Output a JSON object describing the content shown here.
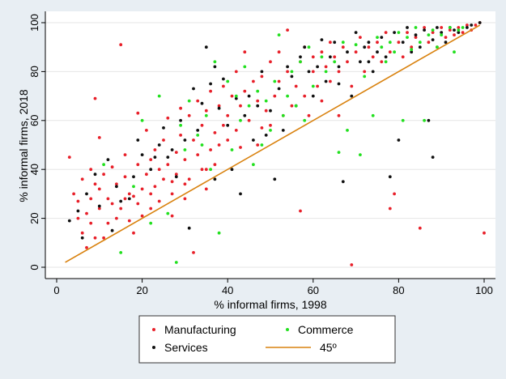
{
  "chart_data": {
    "type": "scatter",
    "xlabel": "% informal firms, 1998",
    "ylabel": "% informal firms, 2018",
    "xlim": [
      0,
      100
    ],
    "ylim": [
      0,
      100
    ],
    "xticks": [
      0,
      20,
      40,
      60,
      80,
      100
    ],
    "yticks": [
      0,
      20,
      40,
      60,
      80,
      100
    ],
    "grid": "horizontal",
    "legend_position": "bottom",
    "colors": {
      "manufacturing": "#e8202a",
      "services": "#111111",
      "commerce": "#22e01f",
      "line45": "#d9820f",
      "plot_background": "#ffffff",
      "page_background": "#e8eef3"
    },
    "series": [
      {
        "name": "Manufacturing",
        "legend_label": "Manufacturing",
        "marker": "dot",
        "points": [
          [
            3,
            45
          ],
          [
            4,
            30
          ],
          [
            5,
            20
          ],
          [
            5,
            27
          ],
          [
            6,
            36
          ],
          [
            6,
            14
          ],
          [
            7,
            22
          ],
          [
            7,
            8
          ],
          [
            8,
            40
          ],
          [
            8,
            28
          ],
          [
            8,
            18
          ],
          [
            9,
            34
          ],
          [
            9,
            69
          ],
          [
            9,
            12
          ],
          [
            10,
            32
          ],
          [
            10,
            53
          ],
          [
            10,
            24
          ],
          [
            11,
            38
          ],
          [
            11,
            12
          ],
          [
            12,
            28
          ],
          [
            12,
            18
          ],
          [
            13,
            26
          ],
          [
            13,
            41
          ],
          [
            14,
            20
          ],
          [
            14,
            34
          ],
          [
            15,
            91
          ],
          [
            15,
            24
          ],
          [
            16,
            37
          ],
          [
            16,
            46
          ],
          [
            17,
            19
          ],
          [
            17,
            30
          ],
          [
            18,
            29
          ],
          [
            18,
            14
          ],
          [
            19,
            63
          ],
          [
            19,
            42
          ],
          [
            20,
            32
          ],
          [
            20,
            21
          ],
          [
            21,
            56
          ],
          [
            21,
            38
          ],
          [
            22,
            24
          ],
          [
            22,
            44
          ],
          [
            23,
            33
          ],
          [
            23,
            48
          ],
          [
            24,
            27
          ],
          [
            25,
            52
          ],
          [
            25,
            36
          ],
          [
            26,
            61
          ],
          [
            26,
            42
          ],
          [
            27,
            21
          ],
          [
            27,
            30
          ],
          [
            28,
            38
          ],
          [
            28,
            47
          ],
          [
            29,
            65
          ],
          [
            29,
            54
          ],
          [
            30,
            44
          ],
          [
            30,
            28
          ],
          [
            31,
            62
          ],
          [
            31,
            36
          ],
          [
            32,
            6
          ],
          [
            32,
            52
          ],
          [
            33,
            68
          ],
          [
            33,
            46
          ],
          [
            34,
            58
          ],
          [
            34,
            40
          ],
          [
            35,
            64
          ],
          [
            35,
            32
          ],
          [
            36,
            72
          ],
          [
            36,
            48
          ],
          [
            37,
            55
          ],
          [
            37,
            42
          ],
          [
            38,
            66
          ],
          [
            38,
            50
          ],
          [
            39,
            74
          ],
          [
            39,
            58
          ],
          [
            40,
            62
          ],
          [
            41,
            70
          ],
          [
            42,
            80
          ],
          [
            42,
            56
          ],
          [
            43,
            66
          ],
          [
            44,
            72
          ],
          [
            44,
            88
          ],
          [
            45,
            60
          ],
          [
            46,
            76
          ],
          [
            47,
            50
          ],
          [
            47,
            68
          ],
          [
            48,
            78
          ],
          [
            49,
            64
          ],
          [
            50,
            58
          ],
          [
            50,
            84
          ],
          [
            51,
            70
          ],
          [
            52,
            76
          ],
          [
            52,
            88
          ],
          [
            53,
            62
          ],
          [
            54,
            97
          ],
          [
            54,
            80
          ],
          [
            55,
            66
          ],
          [
            56,
            74
          ],
          [
            57,
            84
          ],
          [
            57,
            23
          ],
          [
            58,
            90
          ],
          [
            58,
            70
          ],
          [
            59,
            62
          ],
          [
            60,
            80
          ],
          [
            60,
            86
          ],
          [
            61,
            74
          ],
          [
            62,
            88
          ],
          [
            62,
            68
          ],
          [
            63,
            82
          ],
          [
            64,
            76
          ],
          [
            64,
            92
          ],
          [
            65,
            86
          ],
          [
            66,
            80
          ],
          [
            66,
            62
          ],
          [
            67,
            90
          ],
          [
            68,
            84
          ],
          [
            69,
            74
          ],
          [
            69,
            1
          ],
          [
            70,
            88
          ],
          [
            71,
            94
          ],
          [
            72,
            80
          ],
          [
            73,
            90
          ],
          [
            74,
            86
          ],
          [
            75,
            92
          ],
          [
            76,
            84
          ],
          [
            77,
            96
          ],
          [
            78,
            88
          ],
          [
            78,
            24
          ],
          [
            79,
            30
          ],
          [
            80,
            92
          ],
          [
            81,
            86
          ],
          [
            82,
            96
          ],
          [
            83,
            90
          ],
          [
            84,
            94
          ],
          [
            85,
            16
          ],
          [
            86,
            98
          ],
          [
            87,
            92
          ],
          [
            88,
            96
          ],
          [
            89,
            90
          ],
          [
            90,
            98
          ],
          [
            91,
            94
          ],
          [
            92,
            97
          ],
          [
            93,
            95
          ],
          [
            94,
            98
          ],
          [
            95,
            96
          ],
          [
            96,
            99
          ],
          [
            97,
            97
          ],
          [
            98,
            99
          ],
          [
            99,
            100
          ],
          [
            100,
            14
          ],
          [
            48,
            57
          ],
          [
            43,
            49
          ],
          [
            40,
            52
          ],
          [
            35,
            40
          ],
          [
            30,
            34
          ],
          [
            27,
            35
          ],
          [
            24,
            40
          ],
          [
            22,
            30
          ],
          [
            19,
            26
          ],
          [
            16,
            28
          ]
        ]
      },
      {
        "name": "Services",
        "legend_label": "Services",
        "marker": "dot",
        "points": [
          [
            3,
            19
          ],
          [
            5,
            23
          ],
          [
            6,
            12
          ],
          [
            7,
            30
          ],
          [
            9,
            38
          ],
          [
            10,
            25
          ],
          [
            12,
            44
          ],
          [
            13,
            15
          ],
          [
            14,
            33
          ],
          [
            15,
            27
          ],
          [
            17,
            28
          ],
          [
            18,
            37
          ],
          [
            19,
            52
          ],
          [
            20,
            46
          ],
          [
            22,
            40
          ],
          [
            23,
            45
          ],
          [
            24,
            50
          ],
          [
            25,
            57
          ],
          [
            26,
            45
          ],
          [
            27,
            48
          ],
          [
            28,
            37
          ],
          [
            29,
            60
          ],
          [
            30,
            52
          ],
          [
            31,
            16
          ],
          [
            32,
            73
          ],
          [
            33,
            56
          ],
          [
            34,
            67
          ],
          [
            35,
            90
          ],
          [
            36,
            75
          ],
          [
            37,
            82
          ],
          [
            37,
            36
          ],
          [
            38,
            65
          ],
          [
            39,
            77
          ],
          [
            40,
            58
          ],
          [
            41,
            40
          ],
          [
            42,
            69
          ],
          [
            43,
            30
          ],
          [
            44,
            62
          ],
          [
            45,
            70
          ],
          [
            46,
            52
          ],
          [
            47,
            66
          ],
          [
            48,
            80
          ],
          [
            49,
            54
          ],
          [
            50,
            64
          ],
          [
            51,
            36
          ],
          [
            52,
            73
          ],
          [
            53,
            56
          ],
          [
            54,
            82
          ],
          [
            55,
            78
          ],
          [
            56,
            66
          ],
          [
            57,
            86
          ],
          [
            58,
            90
          ],
          [
            59,
            80
          ],
          [
            60,
            70
          ],
          [
            61,
            82
          ],
          [
            62,
            93
          ],
          [
            63,
            76
          ],
          [
            64,
            86
          ],
          [
            65,
            92
          ],
          [
            66,
            82
          ],
          [
            67,
            35
          ],
          [
            68,
            88
          ],
          [
            69,
            70
          ],
          [
            70,
            96
          ],
          [
            71,
            84
          ],
          [
            72,
            90
          ],
          [
            73,
            92
          ],
          [
            74,
            80
          ],
          [
            75,
            88
          ],
          [
            76,
            94
          ],
          [
            77,
            86
          ],
          [
            78,
            37
          ],
          [
            79,
            96
          ],
          [
            80,
            52
          ],
          [
            81,
            92
          ],
          [
            82,
            98
          ],
          [
            83,
            88
          ],
          [
            84,
            95
          ],
          [
            85,
            90
          ],
          [
            86,
            97
          ],
          [
            87,
            60
          ],
          [
            88,
            45
          ],
          [
            88,
            93
          ],
          [
            89,
            98
          ],
          [
            90,
            96
          ],
          [
            91,
            92
          ],
          [
            92,
            98
          ],
          [
            93,
            97
          ],
          [
            94,
            96
          ],
          [
            96,
            98
          ],
          [
            97,
            99
          ],
          [
            99,
            100
          ],
          [
            73,
            84
          ],
          [
            66,
            75
          ]
        ]
      },
      {
        "name": "Commerce",
        "legend_label": "Commerce",
        "marker": "dot",
        "points": [
          [
            11,
            42
          ],
          [
            15,
            6
          ],
          [
            18,
            33
          ],
          [
            20,
            60
          ],
          [
            22,
            18
          ],
          [
            24,
            70
          ],
          [
            26,
            22
          ],
          [
            28,
            2
          ],
          [
            29,
            58
          ],
          [
            30,
            48
          ],
          [
            31,
            68
          ],
          [
            33,
            54
          ],
          [
            34,
            50
          ],
          [
            35,
            62
          ],
          [
            36,
            40
          ],
          [
            37,
            84
          ],
          [
            38,
            14
          ],
          [
            40,
            76
          ],
          [
            41,
            48
          ],
          [
            42,
            70
          ],
          [
            43,
            60
          ],
          [
            44,
            82
          ],
          [
            45,
            66
          ],
          [
            46,
            42
          ],
          [
            47,
            72
          ],
          [
            48,
            50
          ],
          [
            49,
            68
          ],
          [
            50,
            56
          ],
          [
            51,
            76
          ],
          [
            52,
            95
          ],
          [
            53,
            62
          ],
          [
            54,
            70
          ],
          [
            55,
            80
          ],
          [
            56,
            66
          ],
          [
            57,
            84
          ],
          [
            58,
            60
          ],
          [
            59,
            90
          ],
          [
            60,
            74
          ],
          [
            62,
            86
          ],
          [
            63,
            80
          ],
          [
            65,
            84
          ],
          [
            66,
            47
          ],
          [
            67,
            92
          ],
          [
            68,
            56
          ],
          [
            70,
            91
          ],
          [
            71,
            46
          ],
          [
            72,
            78
          ],
          [
            74,
            62
          ],
          [
            75,
            94
          ],
          [
            76,
            90
          ],
          [
            77,
            84
          ],
          [
            78,
            92
          ],
          [
            79,
            88
          ],
          [
            80,
            96
          ],
          [
            81,
            60
          ],
          [
            82,
            94
          ],
          [
            83,
            89
          ],
          [
            84,
            98
          ],
          [
            85,
            92
          ],
          [
            86,
            60
          ],
          [
            87,
            95
          ],
          [
            88,
            97
          ],
          [
            89,
            90
          ],
          [
            90,
            95
          ],
          [
            92,
            98
          ],
          [
            93,
            88
          ],
          [
            94,
            97
          ],
          [
            95,
            98
          ]
        ]
      },
      {
        "name": "45º",
        "legend_label": "45º",
        "marker": "line",
        "points": [
          [
            2,
            2
          ],
          [
            99,
            99
          ]
        ]
      }
    ]
  }
}
